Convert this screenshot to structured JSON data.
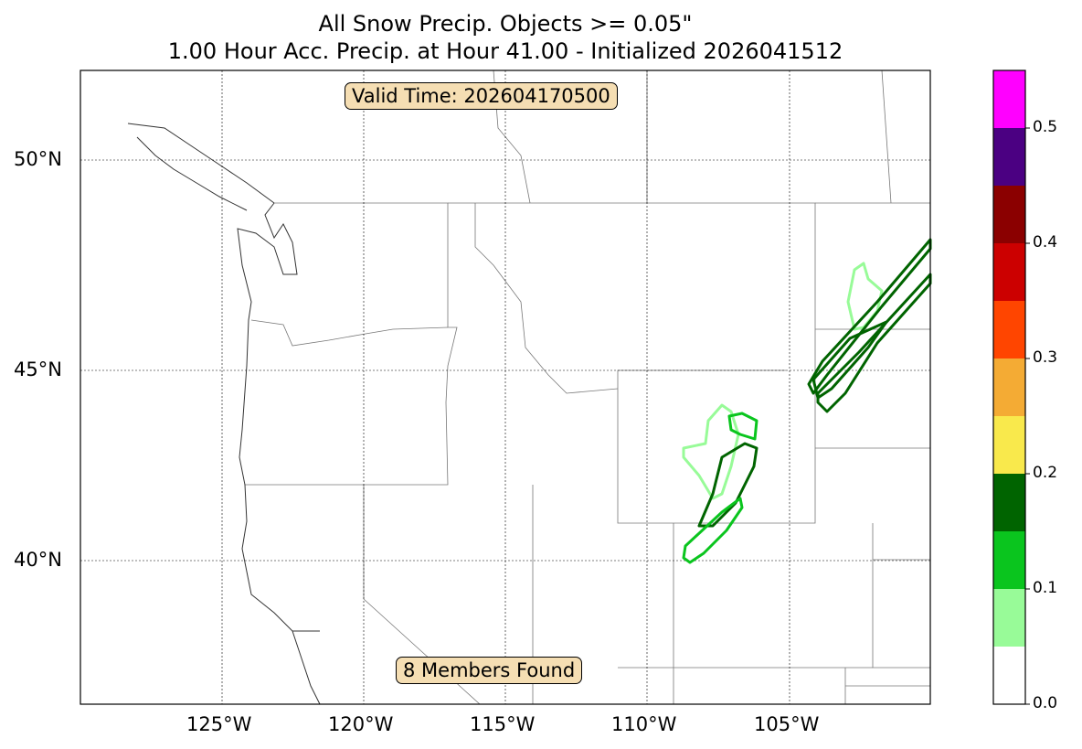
{
  "title_line1": "All Snow Precip. Objects >= 0.05\"",
  "title_line2": "1.00 Hour Acc. Precip. at Hour 41.00 - Initialized 2026041512",
  "valid_time": "Valid Time: 202604170500",
  "members_found": "8 Members Found",
  "lat_labels": [
    "50°N",
    "45°N",
    "40°N"
  ],
  "lon_labels": [
    "125°W",
    "120°W",
    "115°W",
    "110°W",
    "105°W"
  ],
  "colorbar": {
    "ticks": [
      "0.0",
      "0.1",
      "0.2",
      "0.3",
      "0.4",
      "0.5"
    ],
    "bounds": [
      0.0,
      0.05,
      0.1,
      0.15,
      0.2,
      0.25,
      0.3,
      0.35,
      0.4,
      0.45,
      0.5,
      0.55
    ],
    "colors": [
      "#ffffff",
      "#98fb98",
      "#0ac51e",
      "#006400",
      "#f9e94c",
      "#f4ab34",
      "#ff4500",
      "#cc0000",
      "#8b0000",
      "#4b0082",
      "#ff00ff"
    ]
  }
}
